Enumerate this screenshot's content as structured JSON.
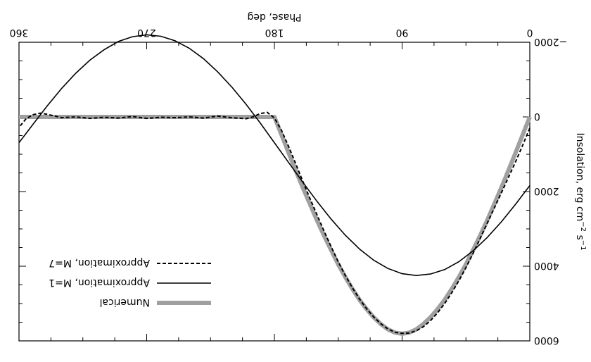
{
  "chart_data": {
    "type": "line",
    "orientation": "rotated-180",
    "xlabel": "Phase, deg",
    "ylabel": "Insolation, erg cm^-2 s^-1",
    "ylabel_parts": {
      "main": "Insolation, erg cm",
      "exp1": "−2",
      "mid": " s",
      "exp2": "−1"
    },
    "xlim": [
      0,
      360
    ],
    "ylim": [
      -2000,
      6000
    ],
    "y_inverted": true,
    "x_ticks": [
      {
        "value": 0,
        "label": "0"
      },
      {
        "value": 90,
        "label": "90"
      },
      {
        "value": 180,
        "label": "180"
      },
      {
        "value": 270,
        "label": "270"
      },
      {
        "value": 360,
        "label": "360"
      }
    ],
    "y_ticks": [
      {
        "value": -2000,
        "label": "−2000"
      },
      {
        "value": 0,
        "label": "0"
      },
      {
        "value": 2000,
        "label": "2000"
      },
      {
        "value": 4000,
        "label": "4000"
      },
      {
        "value": 6000,
        "label": "6000"
      }
    ],
    "grid": false,
    "legend_position": "bottom-left (rotated)",
    "series": [
      {
        "name": "Numerical",
        "style": "thick-gray",
        "color": "#a0a0a0",
        "x": [
          0,
          5,
          10,
          15,
          20,
          25,
          30,
          35,
          40,
          45,
          50,
          55,
          60,
          65,
          70,
          75,
          80,
          85,
          90,
          95,
          100,
          105,
          110,
          115,
          120,
          125,
          130,
          135,
          140,
          145,
          150,
          155,
          160,
          165,
          170,
          175,
          180,
          190,
          200,
          220,
          240,
          260,
          280,
          300,
          320,
          340,
          360
        ],
        "y": [
          0,
          480,
          960,
          1430,
          1890,
          2330,
          2770,
          3180,
          3570,
          3950,
          4290,
          4610,
          4900,
          5150,
          5370,
          5550,
          5690,
          5780,
          5810,
          5780,
          5690,
          5550,
          5370,
          5150,
          4900,
          4610,
          4290,
          3950,
          3570,
          3180,
          2770,
          2330,
          1890,
          1430,
          960,
          480,
          0,
          0,
          0,
          0,
          0,
          0,
          0,
          0,
          0,
          0,
          0
        ]
      },
      {
        "name": "Approximation, M=1",
        "style": "solid",
        "color": "#000000",
        "x": [
          0,
          10,
          20,
          30,
          40,
          50,
          60,
          70,
          80,
          90,
          100,
          110,
          120,
          130,
          140,
          150,
          160,
          170,
          180,
          190,
          200,
          210,
          220,
          230,
          240,
          250,
          260,
          270,
          280,
          290,
          300,
          310,
          320,
          330,
          340,
          350,
          360
        ],
        "y": [
          1840,
          2340,
          2810,
          3230,
          3590,
          3880,
          4090,
          4210,
          4250,
          4200,
          4060,
          3840,
          3540,
          3170,
          2740,
          2260,
          1750,
          1220,
          690,
          160,
          -340,
          -800,
          -1210,
          -1560,
          -1840,
          -2040,
          -2160,
          -2200,
          -2150,
          -2020,
          -1800,
          -1520,
          -1170,
          -760,
          -300,
          190,
          690
        ]
      },
      {
        "name": "Approximation, M=7",
        "style": "dashed",
        "color": "#000000",
        "x": [
          0,
          5,
          10,
          15,
          20,
          25,
          30,
          35,
          40,
          45,
          50,
          55,
          60,
          65,
          70,
          75,
          80,
          85,
          90,
          95,
          100,
          105,
          110,
          115,
          120,
          125,
          130,
          135,
          140,
          145,
          150,
          155,
          160,
          165,
          170,
          175,
          180,
          185,
          190,
          195,
          200,
          210,
          220,
          230,
          240,
          250,
          260,
          270,
          280,
          290,
          300,
          310,
          320,
          330,
          340,
          345,
          350,
          355,
          360
        ],
        "y": [
          300,
          760,
          1200,
          1620,
          2030,
          2440,
          2850,
          3260,
          3660,
          4040,
          4390,
          4710,
          5000,
          5250,
          5460,
          5620,
          5730,
          5790,
          5800,
          5770,
          5680,
          5540,
          5360,
          5140,
          4880,
          4580,
          4250,
          3880,
          3480,
          3060,
          2620,
          2180,
          1720,
          1250,
          790,
          360,
          30,
          -120,
          -90,
          0,
          50,
          20,
          -20,
          30,
          0,
          20,
          10,
          40,
          -10,
          30,
          10,
          40,
          0,
          20,
          -70,
          -100,
          -60,
          50,
          280
        ]
      }
    ]
  }
}
